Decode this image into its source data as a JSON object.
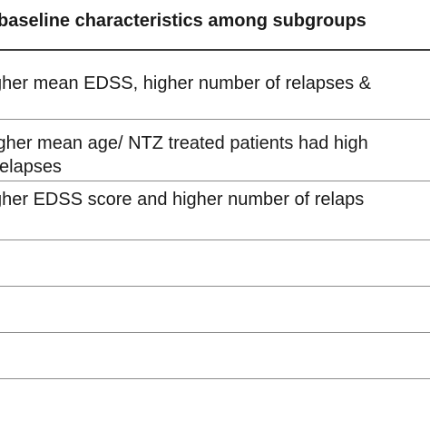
{
  "table": {
    "header": "baseline characteristics among subgroups",
    "rows": [
      {
        "lines": [
          "gher mean EDSS, higher number of relapses &"
        ]
      },
      {
        "lines": [
          "igher mean age/ NTZ treated patients had high",
          "elapses"
        ]
      },
      {
        "lines": [
          "gher EDSS score and higher number of relaps"
        ]
      },
      {
        "lines": []
      },
      {
        "lines": []
      },
      {
        "lines": []
      }
    ]
  }
}
